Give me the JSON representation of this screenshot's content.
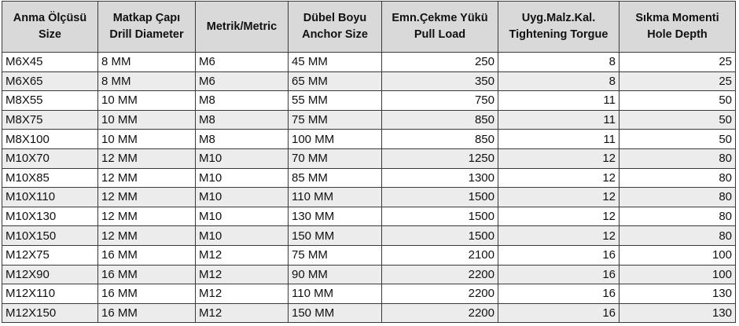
{
  "headers": [
    [
      "Anma Ölçüsü",
      "Size"
    ],
    [
      "Matkap Çapı",
      "Drill Diameter"
    ],
    [
      "Metrik/Metric",
      ""
    ],
    [
      "Dübel Boyu",
      "Anchor Size"
    ],
    [
      "Emn.Çekme Yükü",
      "Pull Load"
    ],
    [
      "Uyg.Malz.Kal.",
      "Tightening Torgue"
    ],
    [
      "Sıkma Momenti",
      "Hole Depth"
    ]
  ],
  "rows": [
    [
      "M6X45",
      "8 MM",
      "M6",
      "45 MM",
      "250",
      "8",
      "25"
    ],
    [
      "M6X65",
      "8 MM",
      "M6",
      "65 MM",
      "350",
      "8",
      "25"
    ],
    [
      "M8X55",
      "10 MM",
      "M8",
      "55 MM",
      "750",
      "11",
      "50"
    ],
    [
      "M8X75",
      "10 MM",
      "M8",
      "75 MM",
      "850",
      "11",
      "50"
    ],
    [
      "M8X100",
      "10 MM",
      "M8",
      "100 MM",
      "850",
      "11",
      "50"
    ],
    [
      "M10X70",
      "12 MM",
      "M10",
      "70 MM",
      "1250",
      "12",
      "80"
    ],
    [
      "M10X85",
      "12 MM",
      "M10",
      "85 MM",
      "1300",
      "12",
      "80"
    ],
    [
      "M10X110",
      "12 MM",
      "M10",
      "110 MM",
      "1500",
      "12",
      "80"
    ],
    [
      "M10X130",
      "12 MM",
      "M10",
      "130 MM",
      "1500",
      "12",
      "80"
    ],
    [
      "M10X150",
      "12 MM",
      "M10",
      "150 MM",
      "1500",
      "12",
      "80"
    ],
    [
      "M12X75",
      "16 MM",
      "M12",
      "75 MM",
      "2100",
      "16",
      "100"
    ],
    [
      "M12X90",
      "16 MM",
      "M12",
      "90 MM",
      "2200",
      "16",
      "100"
    ],
    [
      "M12X110",
      "16 MM",
      "M12",
      "110 MM",
      "2200",
      "16",
      "130"
    ],
    [
      "M12X150",
      "16 MM",
      "M12",
      "150 MM",
      "2200",
      "16",
      "130"
    ]
  ]
}
